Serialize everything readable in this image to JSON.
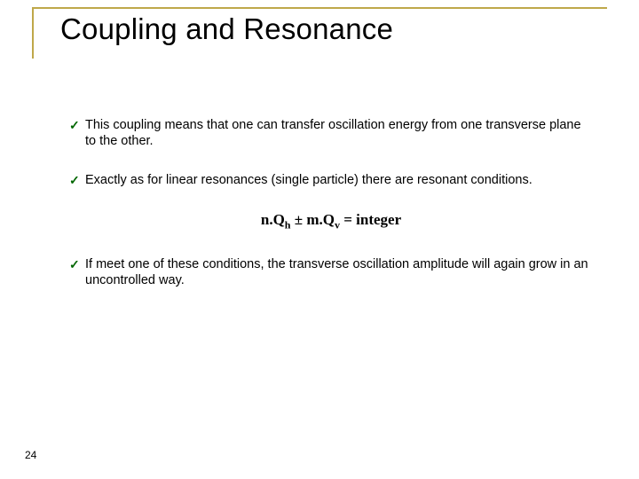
{
  "title_border_color": "#bfa84a",
  "title": "Coupling and Resonance",
  "title_color": "#000000",
  "checkmark_color": "#006600",
  "bullets": [
    "This coupling means that one can transfer oscillation energy from one transverse plane to the other.",
    "Exactly as for linear resonances (single particle) there are resonant conditions.",
    "If meet one of these conditions, the transverse oscillation amplitude will again grow in an uncontrolled way."
  ],
  "equation": {
    "lhs1": "n.Q",
    "sub1": "h",
    "op": " ± ",
    "lhs2": "m.Q",
    "sub2": "v",
    "rhs": " = integer"
  },
  "page_number": "24"
}
